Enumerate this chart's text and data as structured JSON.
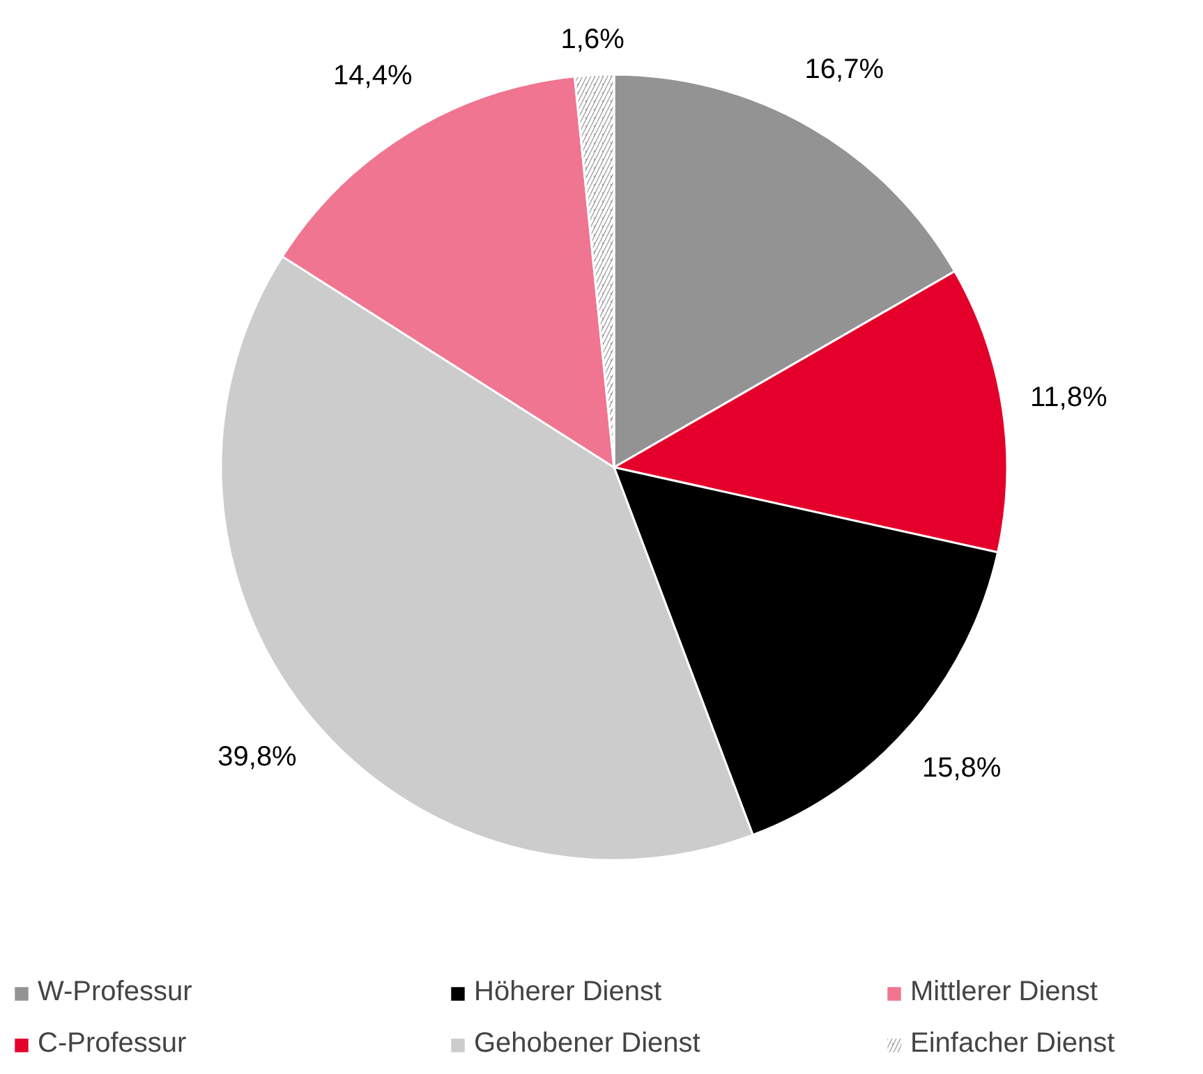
{
  "chart_data": {
    "type": "pie",
    "categories": [
      "W-Professur",
      "C-Professur",
      "Höherer Dienst",
      "Gehobener Dienst",
      "Mittlerer Dienst",
      "Einfacher Dienst"
    ],
    "values": [
      16.7,
      11.8,
      15.8,
      39.8,
      14.4,
      1.6
    ],
    "value_labels": [
      "16,7%",
      "11,8%",
      "15,8%",
      "39,8%",
      "14,4%",
      "1,6%"
    ],
    "colors": [
      "#939393",
      "#e4002b",
      "#000000",
      "#cccccc",
      "#f07590",
      "#a0a0a0"
    ],
    "legend": "bottom"
  }
}
